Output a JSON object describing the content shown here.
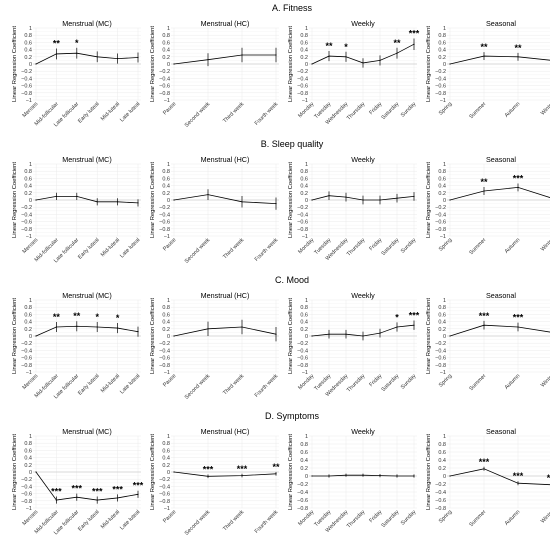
{
  "figure": {
    "rows": [
      {
        "title": "A. Fitness"
      },
      {
        "title": "B. Sleep quality"
      },
      {
        "title": "C. Mood"
      },
      {
        "title": "D. Symptoms"
      }
    ]
  },
  "chart_data": [
    {
      "type": "line",
      "row": 0,
      "col": 0,
      "title": "Menstrual (MC)",
      "ylabel": "Linear Regression Coefficient",
      "ylim": [
        -1,
        1
      ],
      "yticks": [
        -1,
        -0.8,
        -0.6,
        -0.4,
        -0.2,
        0,
        0.2,
        0.4,
        0.6,
        0.8,
        1
      ],
      "categories": [
        "Menses",
        "Mid-follicular",
        "Late follicular",
        "Early luteal",
        "Mid-luteal",
        "Late luteal"
      ],
      "values": [
        0,
        0.28,
        0.3,
        0.2,
        0.15,
        0.18
      ],
      "err": [
        0,
        0.15,
        0.15,
        0.15,
        0.14,
        0.14
      ],
      "sig": [
        "",
        "**",
        "*",
        "",
        "",
        ""
      ]
    },
    {
      "type": "line",
      "row": 0,
      "col": 1,
      "title": "Menstrual (HC)",
      "ylabel": "Linear Regression Coefficient",
      "ylim": [
        -1,
        1
      ],
      "yticks": [
        -1,
        -0.8,
        -0.6,
        -0.4,
        -0.2,
        0,
        0.2,
        0.4,
        0.6,
        0.8,
        1
      ],
      "categories": [
        "Pause",
        "Second week",
        "Third week",
        "Fourth week"
      ],
      "values": [
        0,
        0.12,
        0.25,
        0.25
      ],
      "err": [
        0,
        0.18,
        0.2,
        0.2
      ],
      "sig": [
        "",
        "",
        "",
        ""
      ]
    },
    {
      "type": "line",
      "row": 0,
      "col": 2,
      "title": "Weekly",
      "ylabel": "Linear Regression Coefficient",
      "ylim": [
        -1,
        1
      ],
      "yticks": [
        -1,
        -0.8,
        -0.6,
        -0.4,
        -0.2,
        0,
        0.2,
        0.4,
        0.6,
        0.8,
        1
      ],
      "categories": [
        "Monday",
        "Tuesday",
        "Wednesday",
        "Thursday",
        "Friday",
        "Saturday",
        "Sunday"
      ],
      "values": [
        0,
        0.22,
        0.2,
        0.03,
        0.1,
        0.3,
        0.55
      ],
      "err": [
        0,
        0.14,
        0.14,
        0.13,
        0.14,
        0.15,
        0.16
      ],
      "sig": [
        "",
        "**",
        "*",
        "",
        "",
        "**",
        "***"
      ]
    },
    {
      "type": "line",
      "row": 0,
      "col": 3,
      "title": "Seasonal",
      "ylabel": "Linear Regression Coefficient",
      "ylim": [
        -1,
        1
      ],
      "yticks": [
        -1,
        -0.8,
        -0.6,
        -0.4,
        -0.2,
        0,
        0.2,
        0.4,
        0.6,
        0.8,
        1
      ],
      "categories": [
        "Spring",
        "Summer",
        "Autumn",
        "Winter"
      ],
      "values": [
        0,
        0.22,
        0.2,
        0.1
      ],
      "err": [
        0,
        0.11,
        0.11,
        0.1
      ],
      "sig": [
        "",
        "**",
        "**",
        ""
      ]
    },
    {
      "type": "line",
      "row": 1,
      "col": 0,
      "title": "Menstrual (MC)",
      "ylabel": "Linear Regression Coefficient",
      "ylim": [
        -1,
        1
      ],
      "yticks": [
        -1,
        -0.8,
        -0.6,
        -0.4,
        -0.2,
        0,
        0.2,
        0.4,
        0.6,
        0.8,
        1
      ],
      "categories": [
        "Menses",
        "Mid-follicular",
        "Late follicular",
        "Early luteal",
        "Mid-luteal",
        "Late luteal"
      ],
      "values": [
        0,
        0.1,
        0.1,
        -0.05,
        -0.05,
        -0.08
      ],
      "err": [
        0,
        0.1,
        0.1,
        0.1,
        0.1,
        0.1
      ],
      "sig": [
        "",
        "",
        "",
        "",
        "",
        ""
      ]
    },
    {
      "type": "line",
      "row": 1,
      "col": 1,
      "title": "Menstrual (HC)",
      "ylabel": "Linear Regression Coefficient",
      "ylim": [
        -1,
        1
      ],
      "yticks": [
        -1,
        -0.8,
        -0.6,
        -0.4,
        -0.2,
        0,
        0.2,
        0.4,
        0.6,
        0.8,
        1
      ],
      "categories": [
        "Pause",
        "Second week",
        "Third week",
        "Fourth week"
      ],
      "values": [
        0,
        0.15,
        -0.05,
        -0.1
      ],
      "err": [
        0,
        0.15,
        0.16,
        0.17
      ],
      "sig": [
        "",
        "",
        "",
        ""
      ]
    },
    {
      "type": "line",
      "row": 1,
      "col": 2,
      "title": "Weekly",
      "ylabel": "Linear Regression Coefficient",
      "ylim": [
        -1,
        1
      ],
      "yticks": [
        -1,
        -0.8,
        -0.6,
        -0.4,
        -0.2,
        0,
        0.2,
        0.4,
        0.6,
        0.8,
        1
      ],
      "categories": [
        "Monday",
        "Tuesday",
        "Wednesday",
        "Thursday",
        "Friday",
        "Saturday",
        "Sunday"
      ],
      "values": [
        0,
        0.12,
        0.08,
        0,
        0,
        0.05,
        0.1
      ],
      "err": [
        0,
        0.12,
        0.12,
        0.12,
        0.12,
        0.12,
        0.12
      ],
      "sig": [
        "",
        "",
        "",
        "",
        "",
        "",
        ""
      ]
    },
    {
      "type": "line",
      "row": 1,
      "col": 3,
      "title": "Seasonal",
      "ylabel": "Linear Regression Coefficient",
      "ylim": [
        -1,
        1
      ],
      "yticks": [
        -1,
        -0.8,
        -0.6,
        -0.4,
        -0.2,
        0,
        0.2,
        0.4,
        0.6,
        0.8,
        1
      ],
      "categories": [
        "Spring",
        "Summer",
        "Autumn",
        "Winter"
      ],
      "values": [
        0,
        0.25,
        0.35,
        0.05
      ],
      "err": [
        0,
        0.11,
        0.11,
        0.1
      ],
      "sig": [
        "",
        "**",
        "***",
        ""
      ]
    },
    {
      "type": "line",
      "row": 2,
      "col": 0,
      "title": "Menstrual (MC)",
      "ylabel": "Linear Regression Coefficient",
      "ylim": [
        -1,
        1
      ],
      "yticks": [
        -1,
        -0.8,
        -0.6,
        -0.4,
        -0.2,
        0,
        0.2,
        0.4,
        0.6,
        0.8,
        1
      ],
      "categories": [
        "Menses",
        "Mid-follicular",
        "Late follicular",
        "Early luteal",
        "Mid-luteal",
        "Late luteal"
      ],
      "values": [
        0,
        0.25,
        0.27,
        0.25,
        0.22,
        0.12
      ],
      "err": [
        0,
        0.14,
        0.14,
        0.14,
        0.14,
        0.14
      ],
      "sig": [
        "",
        "**",
        "**",
        "*",
        "*",
        ""
      ]
    },
    {
      "type": "line",
      "row": 2,
      "col": 1,
      "title": "Menstrual (HC)",
      "ylabel": "Linear Regression Coefficient",
      "ylim": [
        -1,
        1
      ],
      "yticks": [
        -1,
        -0.8,
        -0.6,
        -0.4,
        -0.2,
        0,
        0.2,
        0.4,
        0.6,
        0.8,
        1
      ],
      "categories": [
        "Pause",
        "Second week",
        "Third week",
        "Fourth week"
      ],
      "values": [
        0,
        0.2,
        0.25,
        0.05
      ],
      "err": [
        0,
        0.2,
        0.2,
        0.2
      ],
      "sig": [
        "",
        "",
        "",
        ""
      ]
    },
    {
      "type": "line",
      "row": 2,
      "col": 2,
      "title": "Weekly",
      "ylabel": "Linear Regression Coefficient",
      "ylim": [
        -1,
        1
      ],
      "yticks": [
        -1,
        -0.8,
        -0.6,
        -0.4,
        -0.2,
        0,
        0.2,
        0.4,
        0.6,
        0.8,
        1
      ],
      "categories": [
        "Monday",
        "Tuesday",
        "Wednesday",
        "Thursday",
        "Friday",
        "Saturday",
        "Sunday"
      ],
      "values": [
        0,
        0.05,
        0.05,
        0.0,
        0.08,
        0.25,
        0.3
      ],
      "err": [
        0,
        0.12,
        0.12,
        0.12,
        0.12,
        0.13,
        0.13
      ],
      "sig": [
        "",
        "",
        "",
        "",
        "",
        "*",
        "***"
      ]
    },
    {
      "type": "line",
      "row": 2,
      "col": 3,
      "title": "Seasonal",
      "ylabel": "Linear Regression Coefficient",
      "ylim": [
        -1,
        1
      ],
      "yticks": [
        -1,
        -0.8,
        -0.6,
        -0.4,
        -0.2,
        0,
        0.2,
        0.4,
        0.6,
        0.8,
        1
      ],
      "categories": [
        "Spring",
        "Summer",
        "Autumn",
        "Winter"
      ],
      "values": [
        0,
        0.3,
        0.25,
        0.1
      ],
      "err": [
        0,
        0.12,
        0.12,
        0.11
      ],
      "sig": [
        "",
        "***",
        "***",
        ""
      ]
    },
    {
      "type": "line",
      "row": 3,
      "col": 0,
      "title": "Menstrual (MC)",
      "ylabel": "Linear Regression Coefficient",
      "ylim": [
        -1,
        1
      ],
      "yticks": [
        -1,
        -0.8,
        -0.6,
        -0.4,
        -0.2,
        0,
        0.2,
        0.4,
        0.6,
        0.8,
        1
      ],
      "categories": [
        "Menses",
        "Mid-follicular",
        "Late follicular",
        "Early luteal",
        "Mid-luteal",
        "Late luteal"
      ],
      "values": [
        0,
        -0.78,
        -0.7,
        -0.78,
        -0.72,
        -0.62
      ],
      "err": [
        0,
        0.1,
        0.1,
        0.1,
        0.1,
        0.1
      ],
      "sig": [
        "",
        "***",
        "***",
        "***",
        "***",
        "***"
      ]
    },
    {
      "type": "line",
      "row": 3,
      "col": 1,
      "title": "Menstrual (HC)",
      "ylabel": "Linear Regression Coefficient",
      "ylim": [
        -1,
        1
      ],
      "yticks": [
        -1,
        -0.8,
        -0.6,
        -0.4,
        -0.2,
        0,
        0.2,
        0.4,
        0.6,
        0.8,
        1
      ],
      "categories": [
        "Pause",
        "Second week",
        "Third week",
        "Fourth week"
      ],
      "values": [
        0,
        -0.12,
        -0.1,
        -0.05
      ],
      "err": [
        0,
        0.05,
        0.05,
        0.05
      ],
      "sig": [
        "",
        "***",
        "***",
        "**"
      ]
    },
    {
      "type": "line",
      "row": 3,
      "col": 2,
      "title": "Weekly",
      "ylabel": "Linear Regression Coefficient",
      "ylim": [
        -0.8,
        1
      ],
      "yticks": [
        -0.8,
        -0.6,
        -0.4,
        -0.2,
        0,
        0.2,
        0.4,
        0.6,
        0.8,
        1
      ],
      "categories": [
        "Monday",
        "Tuesday",
        "Wednesday",
        "Thursday",
        "Friday",
        "Saturday",
        "Sunday"
      ],
      "values": [
        0,
        0,
        0.02,
        0.02,
        0.01,
        0,
        0
      ],
      "err": [
        0,
        0.04,
        0.04,
        0.04,
        0.04,
        0.04,
        0.04
      ],
      "sig": [
        "",
        "",
        "",
        "",
        "",
        "",
        ""
      ]
    },
    {
      "type": "line",
      "row": 3,
      "col": 3,
      "title": "Seasonal",
      "ylabel": "Linear Regression Coefficient",
      "ylim": [
        -0.8,
        1
      ],
      "yticks": [
        -0.8,
        -0.6,
        -0.4,
        -0.2,
        0,
        0.2,
        0.4,
        0.6,
        0.8,
        1
      ],
      "categories": [
        "Spring",
        "Summer",
        "Autumn",
        "Winter"
      ],
      "values": [
        0,
        0.18,
        -0.18,
        -0.22
      ],
      "err": [
        0,
        0.05,
        0.05,
        0.05
      ],
      "sig": [
        "",
        "***",
        "***",
        "***"
      ]
    }
  ]
}
